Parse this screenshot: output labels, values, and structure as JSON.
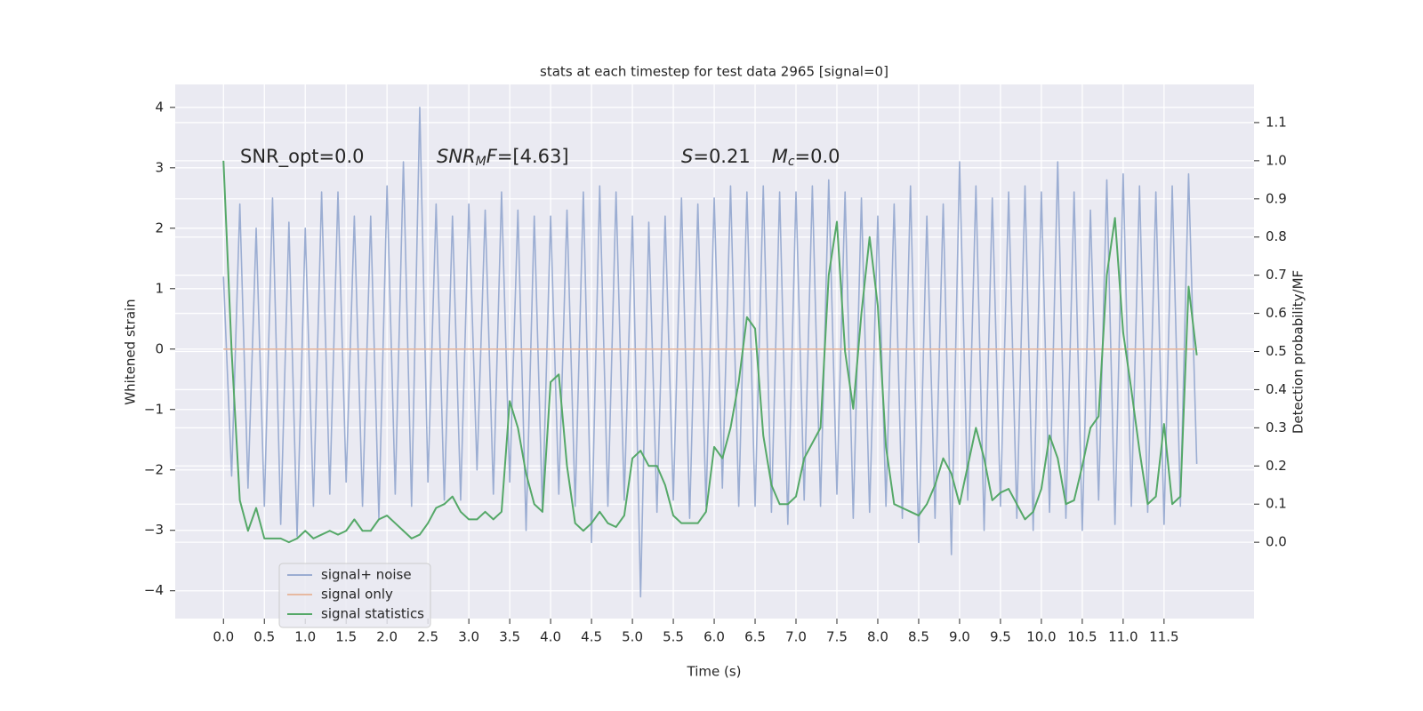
{
  "chart_data": {
    "type": "line",
    "title": "stats at each timestep for test data 2965 [signal=0]",
    "xlabel": "Time (s)",
    "ylabel": "Whitened strain",
    "y2label": "Detection probability/MF",
    "annotations": [
      [
        "SNR_opt=0.0"
      ],
      [
        "SNR",
        "M",
        "F",
        "=[4.63]"
      ],
      [
        "S",
        "=0.21",
        "M",
        "c",
        "=0.0"
      ]
    ],
    "xlim": [
      -0.59,
      12.6
    ],
    "ylim": [
      -4.46,
      4.38
    ],
    "y2lim": [
      -0.2,
      1.2
    ],
    "xticks": [
      {
        "value": 0,
        "label": "0.0"
      },
      0.5,
      {
        "value": 1,
        "label": "1.0"
      },
      1.5,
      {
        "value": 2,
        "label": "2.0"
      },
      2.5,
      {
        "value": 3,
        "label": "3.0"
      },
      3.5,
      {
        "value": 4,
        "label": "4.0"
      },
      4.5,
      {
        "value": 5,
        "label": "5.0"
      },
      5.5,
      {
        "value": 6,
        "label": "6.0"
      },
      6.5,
      {
        "value": 7,
        "label": "7.0"
      },
      7.5,
      {
        "value": 8,
        "label": "8.0"
      },
      8.5,
      {
        "value": 9,
        "label": "9.0"
      },
      9.5,
      {
        "value": 10,
        "label": "10.0"
      },
      10.5,
      {
        "value": 11,
        "label": "11.0"
      },
      11.5
    ],
    "yticks": [
      {
        "value": -4,
        "label": "−4"
      },
      {
        "value": -3,
        "label": "−3"
      },
      {
        "value": -2,
        "label": "−2"
      },
      {
        "value": -1,
        "label": "−1"
      },
      0,
      1,
      2,
      3,
      4
    ],
    "y2ticks": [
      {
        "value": 0,
        "label": "0.0"
      },
      0.1,
      0.2,
      0.3,
      0.4,
      0.5,
      0.6,
      0.7,
      0.8,
      0.9,
      {
        "value": 1,
        "label": "1.0"
      },
      1.1
    ],
    "grid": true,
    "legend_loc": "lower left",
    "x": [
      0,
      0.1,
      0.2,
      0.3,
      0.4,
      0.5,
      0.6,
      0.7,
      0.8,
      0.9,
      1,
      1.1,
      1.2,
      1.3,
      1.4,
      1.5,
      1.6,
      1.7,
      1.8,
      1.9,
      2,
      2.1,
      2.2,
      2.3,
      2.4,
      2.5,
      2.6,
      2.7,
      2.8,
      2.9,
      3,
      3.1,
      3.2,
      3.3,
      3.4,
      3.5,
      3.6,
      3.7,
      3.8,
      3.9,
      4,
      4.1,
      4.2,
      4.3,
      4.4,
      4.5,
      4.6,
      4.7,
      4.8,
      4.9,
      5,
      5.1,
      5.2,
      5.3,
      5.4,
      5.5,
      5.6,
      5.7,
      5.8,
      5.9,
      6,
      6.1,
      6.2,
      6.3,
      6.4,
      6.5,
      6.6,
      6.7,
      6.8,
      6.9,
      7,
      7.1,
      7.2,
      7.3,
      7.4,
      7.5,
      7.6,
      7.7,
      7.8,
      7.9,
      8,
      8.1,
      8.2,
      8.3,
      8.4,
      8.5,
      8.6,
      8.7,
      8.8,
      8.9,
      9,
      9.1,
      9.2,
      9.3,
      9.4,
      9.5,
      9.6,
      9.7,
      9.8,
      9.9,
      10,
      10.1,
      10.2,
      10.3,
      10.4,
      10.5,
      10.6,
      10.7,
      10.8,
      10.9,
      11,
      11.1,
      11.2,
      11.3,
      11.4,
      11.5,
      11.6,
      11.7,
      11.8,
      11.9
    ],
    "series": [
      {
        "name": "signal+ noise",
        "color": "#9badd2",
        "values": [
          1.2,
          -2.1,
          2.4,
          -2.3,
          2.0,
          -2.6,
          2.5,
          -2.9,
          2.1,
          -3.1,
          2.0,
          -2.6,
          2.6,
          -2.4,
          2.6,
          -2.2,
          2.2,
          -2.6,
          2.2,
          -2.8,
          2.7,
          -2.4,
          3.1,
          -2.6,
          4.0,
          -2.2,
          2.4,
          -2.5,
          2.2,
          -2.5,
          2.4,
          -2.0,
          2.3,
          -2.4,
          2.6,
          -2.2,
          2.3,
          -3.0,
          2.2,
          -2.7,
          2.2,
          -2.4,
          2.3,
          -2.6,
          2.6,
          -3.2,
          2.7,
          -2.6,
          2.6,
          -2.5,
          2.2,
          -4.1,
          2.1,
          -2.7,
          2.2,
          -2.5,
          2.5,
          -2.8,
          2.4,
          -2.6,
          2.5,
          -2.3,
          2.7,
          -2.6,
          2.6,
          -2.6,
          2.7,
          -2.7,
          2.6,
          -2.9,
          2.6,
          -2.5,
          2.7,
          -2.6,
          2.8,
          -2.4,
          2.6,
          -2.8,
          2.5,
          -2.7,
          2.2,
          -2.6,
          2.4,
          -2.8,
          2.7,
          -3.2,
          2.2,
          -2.8,
          2.4,
          -3.4,
          3.1,
          -2.5,
          2.7,
          -3.0,
          2.5,
          -2.6,
          2.6,
          -2.8,
          2.7,
          -3.0,
          2.6,
          -2.7,
          3.1,
          -2.8,
          2.6,
          -3.0,
          2.3,
          -2.5,
          2.8,
          -2.9,
          2.9,
          -2.6,
          2.7,
          -2.7,
          2.6,
          -2.9,
          2.7,
          -2.6,
          2.9,
          -1.9
        ]
      },
      {
        "name": "signal only",
        "color": "#e7b9a1",
        "values": [
          0,
          0,
          0,
          0,
          0,
          0,
          0,
          0,
          0,
          0,
          0,
          0,
          0,
          0,
          0,
          0,
          0,
          0,
          0,
          0,
          0,
          0,
          0,
          0,
          0,
          0,
          0,
          0,
          0,
          0,
          0,
          0,
          0,
          0,
          0,
          0,
          0,
          0,
          0,
          0,
          0,
          0,
          0,
          0,
          0,
          0,
          0,
          0,
          0,
          0,
          0,
          0,
          0,
          0,
          0,
          0,
          0,
          0,
          0,
          0,
          0,
          0,
          0,
          0,
          0,
          0,
          0,
          0,
          0,
          0,
          0,
          0,
          0,
          0,
          0,
          0,
          0,
          0,
          0,
          0,
          0,
          0,
          0,
          0,
          0,
          0,
          0,
          0,
          0,
          0,
          0,
          0,
          0,
          0,
          0,
          0,
          0,
          0,
          0,
          0,
          0,
          0,
          0,
          0,
          0,
          0,
          0,
          0,
          0,
          0,
          0,
          0,
          0,
          0,
          0,
          0,
          0,
          0,
          0,
          0
        ]
      },
      {
        "name": "signal statistics",
        "color": "#55a868",
        "axis": "y2",
        "values": [
          1.0,
          0.5,
          0.11,
          0.03,
          0.09,
          0.01,
          0.01,
          0.01,
          0.0,
          0.01,
          0.03,
          0.01,
          0.02,
          0.03,
          0.02,
          0.03,
          0.06,
          0.03,
          0.03,
          0.06,
          0.07,
          0.05,
          0.03,
          0.01,
          0.02,
          0.05,
          0.09,
          0.1,
          0.12,
          0.08,
          0.06,
          0.06,
          0.08,
          0.06,
          0.08,
          0.37,
          0.3,
          0.18,
          0.1,
          0.08,
          0.42,
          0.44,
          0.2,
          0.05,
          0.03,
          0.05,
          0.08,
          0.05,
          0.04,
          0.07,
          0.22,
          0.24,
          0.2,
          0.2,
          0.15,
          0.07,
          0.05,
          0.05,
          0.05,
          0.08,
          0.25,
          0.22,
          0.3,
          0.42,
          0.59,
          0.56,
          0.28,
          0.15,
          0.1,
          0.1,
          0.12,
          0.22,
          0.26,
          0.3,
          0.7,
          0.84,
          0.5,
          0.35,
          0.6,
          0.8,
          0.62,
          0.25,
          0.1,
          0.09,
          0.08,
          0.07,
          0.1,
          0.15,
          0.22,
          0.18,
          0.1,
          0.2,
          0.3,
          0.22,
          0.11,
          0.13,
          0.14,
          0.1,
          0.06,
          0.08,
          0.14,
          0.28,
          0.22,
          0.1,
          0.11,
          0.2,
          0.3,
          0.33,
          0.7,
          0.85,
          0.55,
          0.4,
          0.24,
          0.1,
          0.12,
          0.31,
          0.1,
          0.12,
          0.67,
          0.49
        ]
      }
    ]
  }
}
